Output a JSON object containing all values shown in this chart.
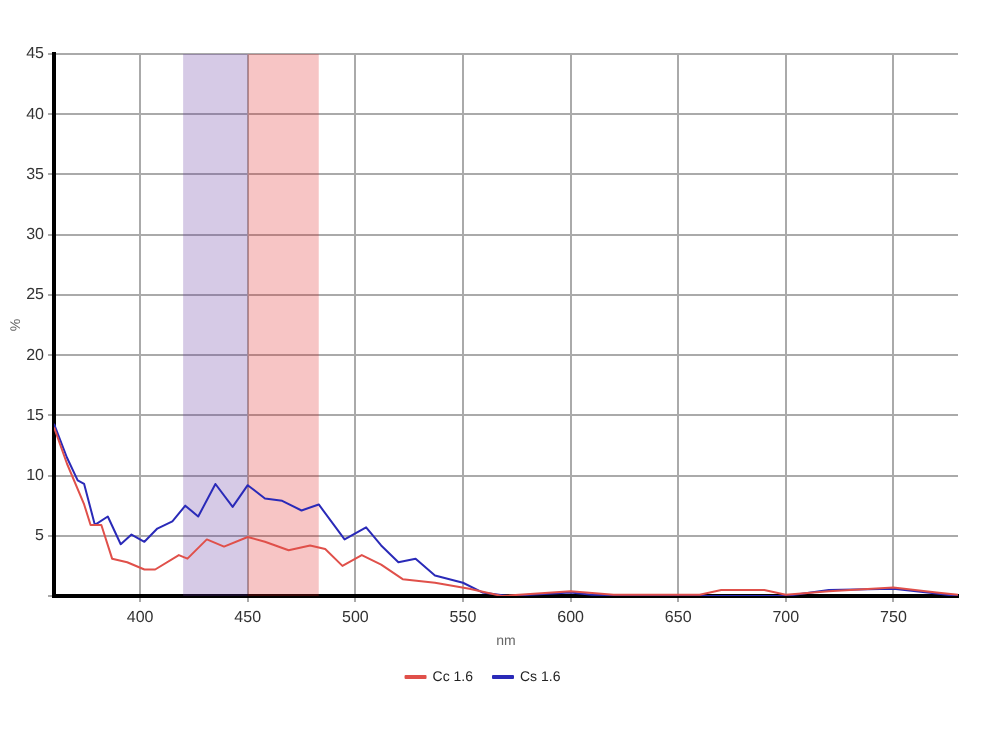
{
  "chart_data": {
    "type": "line",
    "xlabel": "nm",
    "ylabel": "%",
    "xlim": [
      360,
      780
    ],
    "xticks": [
      400,
      450,
      500,
      550,
      600,
      650,
      700,
      750
    ],
    "ylim": [
      0,
      45
    ],
    "yticks": [
      {
        "value": 0,
        "label": null
      },
      5,
      10,
      15,
      20,
      25,
      30,
      35,
      40,
      45
    ],
    "bands": [
      {
        "axis": "x",
        "from": 420,
        "to": 450,
        "color": "#5a2a9a"
      },
      {
        "axis": "x",
        "from": 450,
        "to": 483,
        "color": "#e01818"
      }
    ],
    "grid": true,
    "legend": "bottom",
    "marker": "none",
    "line_style": "solid",
    "series": [
      {
        "name": "Cc 1.6",
        "color": "#e0504a",
        "x": [
          360,
          366,
          374,
          377,
          382,
          387,
          394,
          402,
          407,
          418,
          422,
          431,
          439,
          450,
          458,
          469,
          479,
          486,
          494,
          503,
          512,
          522,
          537,
          553,
          568,
          600,
          620,
          660,
          670,
          690,
          700,
          720,
          750,
          770,
          780
        ],
        "values": [
          14,
          11,
          7.6,
          5.9,
          5.9,
          3.1,
          2.8,
          2.2,
          2.2,
          3.4,
          3.1,
          4.7,
          4.1,
          4.9,
          4.5,
          3.8,
          4.2,
          3.9,
          2.5,
          3.4,
          2.6,
          1.4,
          1.1,
          0.6,
          0,
          0.4,
          0.1,
          0.1,
          0.5,
          0.5,
          0.1,
          0.4,
          0.7,
          0.3,
          0.1
        ]
      },
      {
        "name": "Cs 1.6",
        "color": "#2a2ab8",
        "x": [
          360,
          366,
          371,
          374,
          379,
          385,
          391,
          396,
          402,
          408,
          415,
          421,
          427,
          435,
          443,
          450,
          458,
          466,
          475,
          483,
          495,
          505,
          512,
          520,
          528,
          537,
          550,
          559,
          571,
          600,
          610,
          650,
          700,
          720,
          750,
          770,
          780
        ],
        "values": [
          14.3,
          11.5,
          9.6,
          9.3,
          5.9,
          6.6,
          4.3,
          5.1,
          4.5,
          5.6,
          6.2,
          7.5,
          6.6,
          9.3,
          7.4,
          9.2,
          8.1,
          7.9,
          7.1,
          7.6,
          4.7,
          5.7,
          4.2,
          2.8,
          3.1,
          1.7,
          1.1,
          0.3,
          0,
          0.3,
          0.1,
          0,
          0,
          0.5,
          0.6,
          0.2,
          0
        ]
      }
    ]
  }
}
